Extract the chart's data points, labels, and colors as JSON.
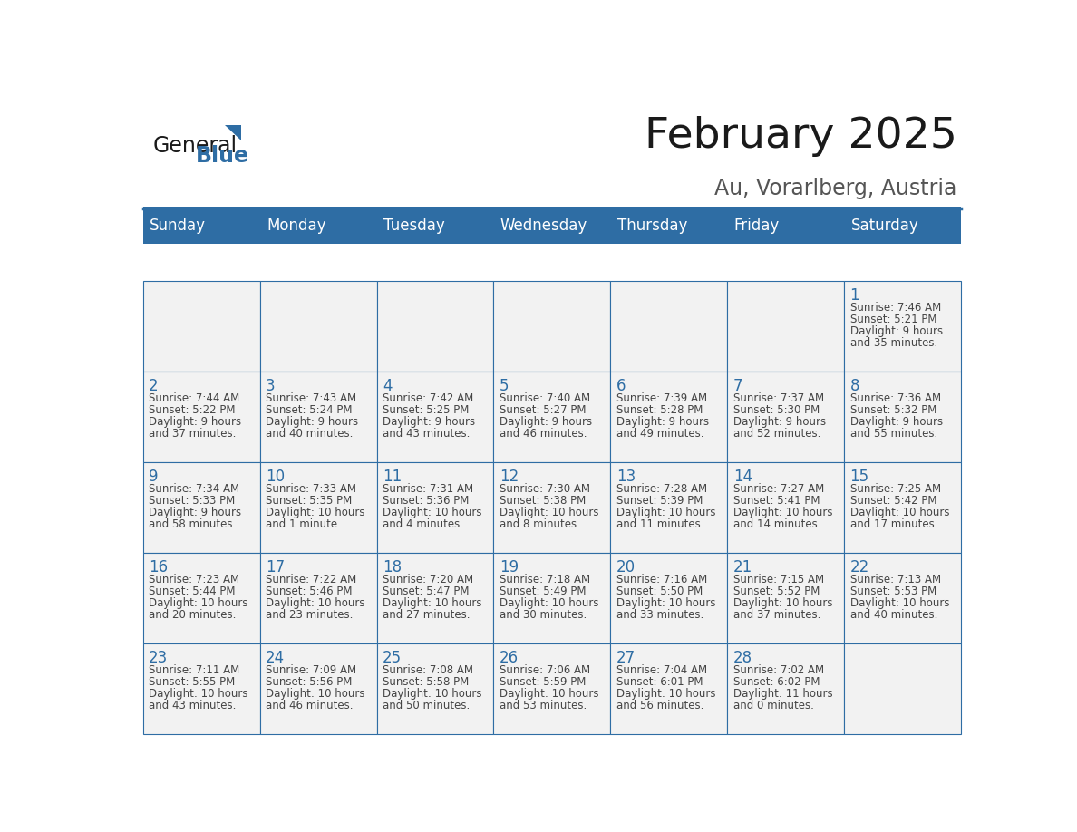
{
  "title": "February 2025",
  "subtitle": "Au, Vorarlberg, Austria",
  "days_of_week": [
    "Sunday",
    "Monday",
    "Tuesday",
    "Wednesday",
    "Thursday",
    "Friday",
    "Saturday"
  ],
  "header_bg": "#2E6DA4",
  "header_text": "#FFFFFF",
  "cell_bg": "#F2F2F2",
  "cell_border": "#2E6DA4",
  "text_color": "#444444",
  "day_num_color": "#2E6DA4",
  "logo_general_color": "#1a1a1a",
  "logo_blue_color": "#2E6DA4",
  "title_color": "#1a1a1a",
  "subtitle_color": "#555555",
  "calendar_data": [
    [
      null,
      null,
      null,
      null,
      null,
      null,
      {
        "day": "1",
        "sunrise": "7:46 AM",
        "sunset": "5:21 PM",
        "dl1": "9 hours",
        "dl2": "and 35 minutes."
      }
    ],
    [
      {
        "day": "2",
        "sunrise": "7:44 AM",
        "sunset": "5:22 PM",
        "dl1": "9 hours",
        "dl2": "and 37 minutes."
      },
      {
        "day": "3",
        "sunrise": "7:43 AM",
        "sunset": "5:24 PM",
        "dl1": "9 hours",
        "dl2": "and 40 minutes."
      },
      {
        "day": "4",
        "sunrise": "7:42 AM",
        "sunset": "5:25 PM",
        "dl1": "9 hours",
        "dl2": "and 43 minutes."
      },
      {
        "day": "5",
        "sunrise": "7:40 AM",
        "sunset": "5:27 PM",
        "dl1": "9 hours",
        "dl2": "and 46 minutes."
      },
      {
        "day": "6",
        "sunrise": "7:39 AM",
        "sunset": "5:28 PM",
        "dl1": "9 hours",
        "dl2": "and 49 minutes."
      },
      {
        "day": "7",
        "sunrise": "7:37 AM",
        "sunset": "5:30 PM",
        "dl1": "9 hours",
        "dl2": "and 52 minutes."
      },
      {
        "day": "8",
        "sunrise": "7:36 AM",
        "sunset": "5:32 PM",
        "dl1": "9 hours",
        "dl2": "and 55 minutes."
      }
    ],
    [
      {
        "day": "9",
        "sunrise": "7:34 AM",
        "sunset": "5:33 PM",
        "dl1": "9 hours",
        "dl2": "and 58 minutes."
      },
      {
        "day": "10",
        "sunrise": "7:33 AM",
        "sunset": "5:35 PM",
        "dl1": "10 hours",
        "dl2": "and 1 minute."
      },
      {
        "day": "11",
        "sunrise": "7:31 AM",
        "sunset": "5:36 PM",
        "dl1": "10 hours",
        "dl2": "and 4 minutes."
      },
      {
        "day": "12",
        "sunrise": "7:30 AM",
        "sunset": "5:38 PM",
        "dl1": "10 hours",
        "dl2": "and 8 minutes."
      },
      {
        "day": "13",
        "sunrise": "7:28 AM",
        "sunset": "5:39 PM",
        "dl1": "10 hours",
        "dl2": "and 11 minutes."
      },
      {
        "day": "14",
        "sunrise": "7:27 AM",
        "sunset": "5:41 PM",
        "dl1": "10 hours",
        "dl2": "and 14 minutes."
      },
      {
        "day": "15",
        "sunrise": "7:25 AM",
        "sunset": "5:42 PM",
        "dl1": "10 hours",
        "dl2": "and 17 minutes."
      }
    ],
    [
      {
        "day": "16",
        "sunrise": "7:23 AM",
        "sunset": "5:44 PM",
        "dl1": "10 hours",
        "dl2": "and 20 minutes."
      },
      {
        "day": "17",
        "sunrise": "7:22 AM",
        "sunset": "5:46 PM",
        "dl1": "10 hours",
        "dl2": "and 23 minutes."
      },
      {
        "day": "18",
        "sunrise": "7:20 AM",
        "sunset": "5:47 PM",
        "dl1": "10 hours",
        "dl2": "and 27 minutes."
      },
      {
        "day": "19",
        "sunrise": "7:18 AM",
        "sunset": "5:49 PM",
        "dl1": "10 hours",
        "dl2": "and 30 minutes."
      },
      {
        "day": "20",
        "sunrise": "7:16 AM",
        "sunset": "5:50 PM",
        "dl1": "10 hours",
        "dl2": "and 33 minutes."
      },
      {
        "day": "21",
        "sunrise": "7:15 AM",
        "sunset": "5:52 PM",
        "dl1": "10 hours",
        "dl2": "and 37 minutes."
      },
      {
        "day": "22",
        "sunrise": "7:13 AM",
        "sunset": "5:53 PM",
        "dl1": "10 hours",
        "dl2": "and 40 minutes."
      }
    ],
    [
      {
        "day": "23",
        "sunrise": "7:11 AM",
        "sunset": "5:55 PM",
        "dl1": "10 hours",
        "dl2": "and 43 minutes."
      },
      {
        "day": "24",
        "sunrise": "7:09 AM",
        "sunset": "5:56 PM",
        "dl1": "10 hours",
        "dl2": "and 46 minutes."
      },
      {
        "day": "25",
        "sunrise": "7:08 AM",
        "sunset": "5:58 PM",
        "dl1": "10 hours",
        "dl2": "and 50 minutes."
      },
      {
        "day": "26",
        "sunrise": "7:06 AM",
        "sunset": "5:59 PM",
        "dl1": "10 hours",
        "dl2": "and 53 minutes."
      },
      {
        "day": "27",
        "sunrise": "7:04 AM",
        "sunset": "6:01 PM",
        "dl1": "10 hours",
        "dl2": "and 56 minutes."
      },
      {
        "day": "28",
        "sunrise": "7:02 AM",
        "sunset": "6:02 PM",
        "dl1": "11 hours",
        "dl2": "and 0 minutes."
      },
      null
    ]
  ]
}
